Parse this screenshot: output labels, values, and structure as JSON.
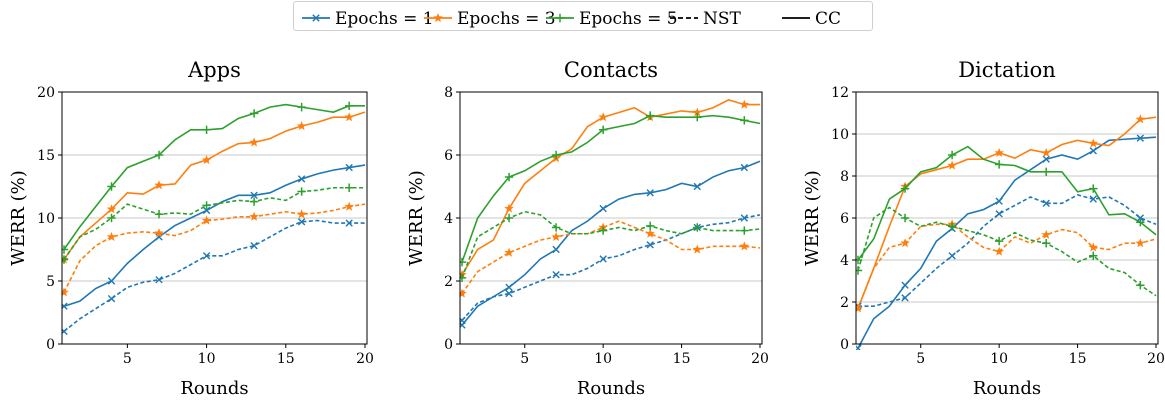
{
  "legend": {
    "items": [
      {
        "label": "Epochs = 1",
        "color": "#1f77b4",
        "marker": "x",
        "line": "solid"
      },
      {
        "label": "Epochs = 3",
        "color": "#ff7f0e",
        "marker": "star",
        "line": "solid"
      },
      {
        "label": "Epochs = 5",
        "color": "#2ca02c",
        "marker": "plus",
        "line": "solid"
      },
      {
        "label": "NST",
        "color": "#000000",
        "marker": "none",
        "line": "dashed"
      },
      {
        "label": "CC",
        "color": "#000000",
        "marker": "none",
        "line": "solid"
      }
    ]
  },
  "chart_data": [
    {
      "type": "line",
      "title": "Apps",
      "xlabel": "Rounds",
      "ylabel": "WERR (%)",
      "xlim": [
        1,
        20
      ],
      "ylim": [
        0,
        20
      ],
      "xticks": [
        5,
        10,
        15,
        20
      ],
      "yticks": [
        0,
        5,
        10,
        15,
        20
      ],
      "grid": "horizontal",
      "x": [
        1,
        2,
        3,
        4,
        5,
        6,
        7,
        8,
        9,
        10,
        11,
        12,
        13,
        14,
        15,
        16,
        17,
        18,
        19,
        20
      ],
      "series": [
        {
          "name": "Epochs = 1",
          "method": "CC",
          "color": "#1f77b4",
          "marker": "x",
          "line": "solid",
          "values": [
            3.0,
            3.4,
            4.4,
            5.0,
            6.4,
            7.5,
            8.5,
            9.4,
            10.0,
            10.6,
            11.3,
            11.8,
            11.8,
            12.0,
            12.6,
            13.1,
            13.5,
            13.8,
            14.0,
            14.2
          ]
        },
        {
          "name": "Epochs = 3",
          "method": "CC",
          "color": "#ff7f0e",
          "marker": "star",
          "line": "solid",
          "values": [
            6.7,
            8.5,
            9.6,
            10.7,
            12.0,
            11.9,
            12.6,
            12.7,
            14.2,
            14.6,
            15.3,
            15.9,
            16.0,
            16.3,
            16.9,
            17.3,
            17.6,
            18.0,
            18.0,
            18.4
          ]
        },
        {
          "name": "Epochs = 5",
          "method": "CC",
          "color": "#2ca02c",
          "marker": "plus",
          "line": "solid",
          "values": [
            7.5,
            9.3,
            10.9,
            12.5,
            14.0,
            14.5,
            15.0,
            16.2,
            17.0,
            17.0,
            17.1,
            17.9,
            18.3,
            18.8,
            19.0,
            18.8,
            18.6,
            18.4,
            18.9,
            18.9
          ]
        },
        {
          "name": "Epochs = 1",
          "method": "NST",
          "color": "#1f77b4",
          "marker": "x",
          "line": "dashed",
          "values": [
            1.0,
            2.0,
            2.8,
            3.6,
            4.5,
            4.9,
            5.1,
            5.6,
            6.3,
            7.0,
            7.0,
            7.5,
            7.8,
            8.5,
            9.2,
            9.7,
            9.8,
            9.6,
            9.6,
            9.6
          ]
        },
        {
          "name": "Epochs = 3",
          "method": "NST",
          "color": "#ff7f0e",
          "marker": "star",
          "line": "dashed",
          "values": [
            4.1,
            6.6,
            7.8,
            8.5,
            8.8,
            8.9,
            8.8,
            8.6,
            9.0,
            9.8,
            9.9,
            10.1,
            10.1,
            10.3,
            10.5,
            10.3,
            10.4,
            10.6,
            10.9,
            11.1
          ]
        },
        {
          "name": "Epochs = 5",
          "method": "NST",
          "color": "#2ca02c",
          "marker": "plus",
          "line": "dashed",
          "values": [
            6.7,
            8.5,
            9.1,
            10.0,
            11.1,
            10.7,
            10.3,
            10.4,
            10.3,
            11.0,
            11.2,
            11.4,
            11.3,
            11.6,
            11.4,
            12.1,
            12.2,
            12.4,
            12.4,
            12.4
          ]
        }
      ]
    },
    {
      "type": "line",
      "title": "Contacts",
      "xlabel": "Rounds",
      "ylabel": "WERR (%)",
      "xlim": [
        1,
        20
      ],
      "ylim": [
        0,
        8
      ],
      "xticks": [
        5,
        10,
        15,
        20
      ],
      "yticks": [
        0,
        2,
        4,
        6,
        8
      ],
      "grid": "horizontal",
      "x": [
        1,
        2,
        3,
        4,
        5,
        6,
        7,
        8,
        9,
        10,
        11,
        12,
        13,
        14,
        15,
        16,
        17,
        18,
        19,
        20
      ],
      "series": [
        {
          "name": "Epochs = 1",
          "method": "CC",
          "color": "#1f77b4",
          "marker": "x",
          "line": "solid",
          "values": [
            0.6,
            1.2,
            1.5,
            1.8,
            2.2,
            2.7,
            3.0,
            3.6,
            3.9,
            4.3,
            4.6,
            4.75,
            4.8,
            4.9,
            5.1,
            5.0,
            5.3,
            5.5,
            5.6,
            5.8
          ]
        },
        {
          "name": "Epochs = 3",
          "method": "CC",
          "color": "#ff7f0e",
          "marker": "star",
          "line": "solid",
          "values": [
            2.2,
            3.0,
            3.3,
            4.3,
            5.1,
            5.5,
            5.9,
            6.2,
            6.9,
            7.2,
            7.35,
            7.5,
            7.2,
            7.3,
            7.4,
            7.35,
            7.5,
            7.75,
            7.6,
            7.6
          ]
        },
        {
          "name": "Epochs = 5",
          "method": "CC",
          "color": "#2ca02c",
          "marker": "plus",
          "line": "solid",
          "values": [
            2.6,
            4.0,
            4.7,
            5.3,
            5.5,
            5.8,
            6.0,
            6.1,
            6.4,
            6.8,
            6.9,
            7.0,
            7.25,
            7.2,
            7.2,
            7.2,
            7.25,
            7.2,
            7.1,
            7.0
          ]
        },
        {
          "name": "Epochs = 1",
          "method": "NST",
          "color": "#1f77b4",
          "marker": "x",
          "line": "dashed",
          "values": [
            0.75,
            1.3,
            1.5,
            1.6,
            1.8,
            2.0,
            2.2,
            2.2,
            2.4,
            2.7,
            2.8,
            3.0,
            3.15,
            3.3,
            3.5,
            3.7,
            3.8,
            3.85,
            4.0,
            4.1
          ]
        },
        {
          "name": "Epochs = 3",
          "method": "NST",
          "color": "#ff7f0e",
          "marker": "star",
          "line": "dashed",
          "values": [
            1.6,
            2.3,
            2.6,
            2.9,
            3.1,
            3.3,
            3.4,
            3.5,
            3.5,
            3.7,
            3.9,
            3.7,
            3.5,
            3.3,
            3.0,
            3.0,
            3.1,
            3.1,
            3.1,
            3.05
          ]
        },
        {
          "name": "Epochs = 5",
          "method": "NST",
          "color": "#2ca02c",
          "marker": "plus",
          "line": "dashed",
          "values": [
            2.1,
            3.4,
            3.7,
            4.0,
            4.2,
            4.1,
            3.7,
            3.5,
            3.5,
            3.6,
            3.7,
            3.6,
            3.75,
            3.6,
            3.5,
            3.7,
            3.6,
            3.6,
            3.6,
            3.65
          ]
        }
      ]
    },
    {
      "type": "line",
      "title": "Dictation",
      "xlabel": "Rounds",
      "ylabel": "WERR (%)",
      "xlim": [
        1,
        20
      ],
      "ylim": [
        0,
        12
      ],
      "xticks": [
        5,
        10,
        15,
        20
      ],
      "yticks": [
        0,
        2,
        4,
        6,
        8,
        10,
        12
      ],
      "grid": "horizontal",
      "x": [
        1,
        2,
        3,
        4,
        5,
        6,
        7,
        8,
        9,
        10,
        11,
        12,
        13,
        14,
        15,
        16,
        17,
        18,
        19,
        20
      ],
      "series": [
        {
          "name": "Epochs = 1",
          "method": "CC",
          "color": "#1f77b4",
          "marker": "x",
          "line": "solid",
          "values": [
            -0.2,
            1.2,
            1.8,
            2.8,
            3.6,
            4.9,
            5.5,
            6.2,
            6.4,
            6.8,
            7.8,
            8.3,
            8.8,
            9.0,
            8.8,
            9.2,
            9.7,
            9.75,
            9.8,
            9.85
          ]
        },
        {
          "name": "Epochs = 3",
          "method": "CC",
          "color": "#ff7f0e",
          "marker": "star",
          "line": "solid",
          "values": [
            1.7,
            3.6,
            5.6,
            7.5,
            8.1,
            8.3,
            8.5,
            8.8,
            8.8,
            9.1,
            8.85,
            9.25,
            9.1,
            9.5,
            9.7,
            9.55,
            9.45,
            10.0,
            10.7,
            10.8
          ]
        },
        {
          "name": "Epochs = 5",
          "method": "CC",
          "color": "#2ca02c",
          "marker": "plus",
          "line": "solid",
          "values": [
            4.0,
            5.0,
            6.9,
            7.4,
            8.2,
            8.4,
            9.0,
            9.4,
            8.8,
            8.55,
            8.5,
            8.2,
            8.2,
            8.2,
            7.25,
            7.4,
            6.15,
            6.2,
            5.8,
            5.2
          ]
        },
        {
          "name": "Epochs = 1",
          "method": "NST",
          "color": "#1f77b4",
          "marker": "x",
          "line": "dashed",
          "values": [
            1.8,
            1.8,
            2.0,
            2.2,
            2.9,
            3.6,
            4.2,
            4.8,
            5.6,
            6.2,
            6.6,
            7.0,
            6.7,
            6.7,
            7.1,
            6.9,
            7.0,
            6.6,
            6.0,
            5.7
          ]
        },
        {
          "name": "Epochs = 3",
          "method": "NST",
          "color": "#ff7f0e",
          "marker": "star",
          "line": "dashed",
          "values": [
            1.7,
            3.6,
            4.6,
            4.8,
            5.6,
            5.7,
            5.7,
            5.1,
            4.6,
            4.4,
            5.1,
            4.8,
            5.2,
            5.45,
            5.3,
            4.6,
            4.5,
            4.8,
            4.8,
            5.0
          ]
        },
        {
          "name": "Epochs = 5",
          "method": "NST",
          "color": "#2ca02c",
          "marker": "plus",
          "line": "dashed",
          "values": [
            3.5,
            6.0,
            6.5,
            6.0,
            5.6,
            5.8,
            5.6,
            5.4,
            5.2,
            4.9,
            5.3,
            4.95,
            4.8,
            4.4,
            3.9,
            4.2,
            3.6,
            3.4,
            2.8,
            2.3
          ]
        }
      ]
    }
  ]
}
